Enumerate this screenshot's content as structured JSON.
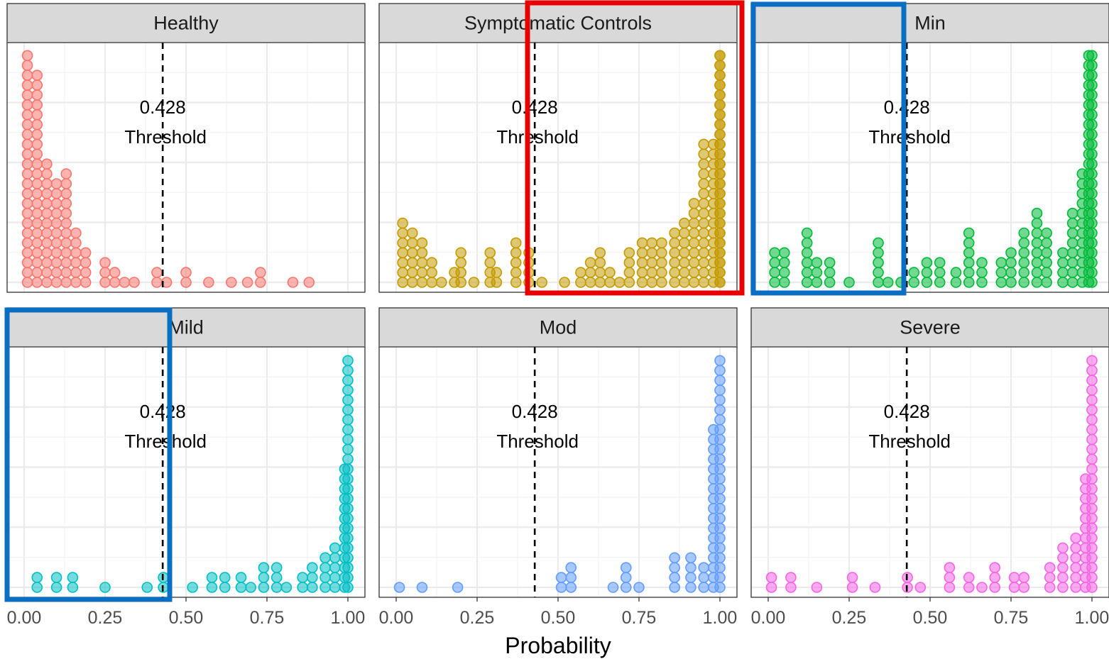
{
  "chart_data": {
    "type": "dotplot",
    "xlabel": "Probability",
    "ylabel": "",
    "xlim": [
      0,
      1
    ],
    "xticks": [
      0,
      0.25,
      0.5,
      0.75,
      1
    ],
    "xtick_labels": [
      "0.00",
      "0.25",
      "0.50",
      "0.75",
      "1.00"
    ],
    "grid": true,
    "legend": "none",
    "threshold": {
      "value": 0.428,
      "label_value": "0.428",
      "label_text": "Threshold"
    },
    "facets": [
      {
        "name": "Healthy",
        "color": "#F8766D",
        "stacks": [
          [
            0.01,
            24
          ],
          [
            0.04,
            22
          ],
          [
            0.07,
            13
          ],
          [
            0.1,
            11
          ],
          [
            0.13,
            12
          ],
          [
            0.16,
            6
          ],
          [
            0.19,
            4
          ],
          [
            0.25,
            3
          ],
          [
            0.28,
            2
          ],
          [
            0.31,
            1
          ],
          [
            0.34,
            1
          ],
          [
            0.41,
            2
          ],
          [
            0.44,
            1
          ],
          [
            0.5,
            2
          ],
          [
            0.57,
            1
          ],
          [
            0.64,
            1
          ],
          [
            0.69,
            1
          ],
          [
            0.73,
            2
          ],
          [
            0.83,
            1
          ],
          [
            0.88,
            1
          ]
        ]
      },
      {
        "name": "Symptomatic Controls",
        "color": "#C49A00",
        "stacks": [
          [
            0.02,
            7
          ],
          [
            0.05,
            6
          ],
          [
            0.08,
            5
          ],
          [
            0.11,
            3
          ],
          [
            0.14,
            1
          ],
          [
            0.18,
            2
          ],
          [
            0.2,
            4
          ],
          [
            0.24,
            1
          ],
          [
            0.29,
            4
          ],
          [
            0.31,
            2
          ],
          [
            0.37,
            5
          ],
          [
            0.41,
            4
          ],
          [
            0.45,
            1
          ],
          [
            0.52,
            1
          ],
          [
            0.57,
            2
          ],
          [
            0.6,
            3
          ],
          [
            0.63,
            4
          ],
          [
            0.66,
            2
          ],
          [
            0.69,
            1
          ],
          [
            0.72,
            4
          ],
          [
            0.76,
            5
          ],
          [
            0.79,
            5
          ],
          [
            0.82,
            5
          ],
          [
            0.86,
            6
          ],
          [
            0.89,
            7
          ],
          [
            0.92,
            9
          ],
          [
            0.95,
            15
          ],
          [
            0.98,
            15
          ],
          [
            1.0,
            24
          ],
          [
            1.0,
            24
          ]
        ]
      },
      {
        "name": "Min",
        "color": "#00BA38",
        "stacks": [
          [
            0.02,
            4
          ],
          [
            0.05,
            4
          ],
          [
            0.12,
            6
          ],
          [
            0.15,
            3
          ],
          [
            0.19,
            3
          ],
          [
            0.25,
            1
          ],
          [
            0.34,
            5
          ],
          [
            0.37,
            1
          ],
          [
            0.41,
            1
          ],
          [
            0.45,
            2
          ],
          [
            0.49,
            3
          ],
          [
            0.53,
            3
          ],
          [
            0.58,
            2
          ],
          [
            0.62,
            6
          ],
          [
            0.66,
            3
          ],
          [
            0.72,
            3
          ],
          [
            0.75,
            4
          ],
          [
            0.79,
            6
          ],
          [
            0.83,
            8
          ],
          [
            0.86,
            6
          ],
          [
            0.91,
            4
          ],
          [
            0.94,
            8
          ],
          [
            0.97,
            12
          ],
          [
            0.99,
            24
          ],
          [
            1.0,
            24
          ]
        ]
      },
      {
        "name": "Mild",
        "color": "#00BFC4",
        "stacks": [
          [
            0.04,
            2
          ],
          [
            0.1,
            2
          ],
          [
            0.15,
            2
          ],
          [
            0.25,
            1
          ],
          [
            0.38,
            1
          ],
          [
            0.43,
            2
          ],
          [
            0.52,
            1
          ],
          [
            0.58,
            2
          ],
          [
            0.62,
            2
          ],
          [
            0.67,
            2
          ],
          [
            0.7,
            1
          ],
          [
            0.74,
            3
          ],
          [
            0.78,
            3
          ],
          [
            0.81,
            1
          ],
          [
            0.86,
            2
          ],
          [
            0.89,
            3
          ],
          [
            0.93,
            4
          ],
          [
            0.96,
            5
          ],
          [
            0.99,
            13
          ],
          [
            1.0,
            24
          ]
        ]
      },
      {
        "name": "Mod",
        "color": "#619CFF",
        "stacks": [
          [
            0.01,
            1
          ],
          [
            0.08,
            1
          ],
          [
            0.19,
            1
          ],
          [
            0.51,
            2
          ],
          [
            0.54,
            3
          ],
          [
            0.67,
            1
          ],
          [
            0.71,
            3
          ],
          [
            0.75,
            1
          ],
          [
            0.86,
            4
          ],
          [
            0.91,
            4
          ],
          [
            0.95,
            3
          ],
          [
            0.98,
            17
          ],
          [
            1.0,
            24
          ]
        ]
      },
      {
        "name": "Severe",
        "color": "#F564E3",
        "stacks": [
          [
            0.01,
            2
          ],
          [
            0.07,
            2
          ],
          [
            0.15,
            1
          ],
          [
            0.26,
            2
          ],
          [
            0.33,
            1
          ],
          [
            0.43,
            2
          ],
          [
            0.47,
            1
          ],
          [
            0.56,
            3
          ],
          [
            0.62,
            2
          ],
          [
            0.66,
            1
          ],
          [
            0.7,
            3
          ],
          [
            0.76,
            2
          ],
          [
            0.79,
            2
          ],
          [
            0.87,
            3
          ],
          [
            0.91,
            5
          ],
          [
            0.95,
            6
          ],
          [
            0.98,
            12
          ],
          [
            1.0,
            24
          ]
        ]
      }
    ]
  }
}
